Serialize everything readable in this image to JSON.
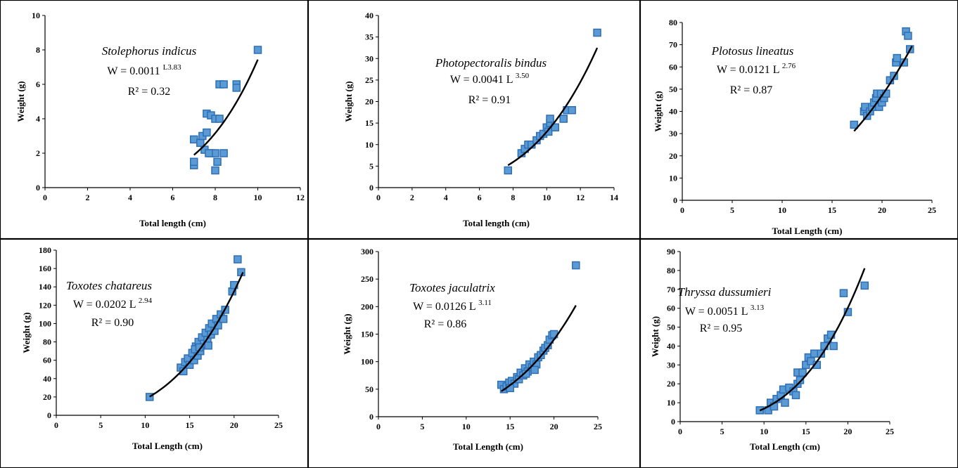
{
  "chart_data": [
    {
      "type": "scatter",
      "title": "",
      "xlabel": "Total length (cm)",
      "ylabel": "Weight (g)",
      "xlim": [
        0,
        12
      ],
      "xticks": [
        0,
        2,
        4,
        6,
        8,
        10,
        12
      ],
      "ylim": [
        0,
        10
      ],
      "yticks": [
        0,
        2,
        4,
        6,
        8,
        10
      ],
      "annotation": {
        "species": "Stolephorus indicus",
        "eq_left": "W = 0.0011",
        "eq_sup": "L3.83",
        "r2": "R² = 0.32"
      },
      "points": [
        [
          7.0,
          1.3
        ],
        [
          7.0,
          1.5
        ],
        [
          7.0,
          2.8
        ],
        [
          7.3,
          2.6
        ],
        [
          7.4,
          3.0
        ],
        [
          7.6,
          3.2
        ],
        [
          7.6,
          4.3
        ],
        [
          7.8,
          4.2
        ],
        [
          8.0,
          4.0
        ],
        [
          8.2,
          4.0
        ],
        [
          7.8,
          2.0
        ],
        [
          8.0,
          2.0
        ],
        [
          8.0,
          1.0
        ],
        [
          8.1,
          1.5
        ],
        [
          8.4,
          2.0
        ],
        [
          8.2,
          6.0
        ],
        [
          8.4,
          6.0
        ],
        [
          9.0,
          6.0
        ],
        [
          9.0,
          5.8
        ],
        [
          10.0,
          8.0
        ],
        [
          7.5,
          2.2
        ],
        [
          7.7,
          2.0
        ]
      ],
      "curve": {
        "a": 0.0011,
        "b": 3.83,
        "x_from": 7.0,
        "x_to": 10.0
      }
    },
    {
      "type": "scatter",
      "title": "",
      "xlabel": "Total length (cm)",
      "ylabel": "Weight (g)",
      "xlim": [
        0,
        14
      ],
      "xticks": [
        0,
        2,
        4,
        6,
        8,
        10,
        12,
        14
      ],
      "ylim": [
        0,
        40
      ],
      "yticks": [
        0,
        5,
        10,
        15,
        20,
        25,
        30,
        35,
        40
      ],
      "annotation": {
        "species": "Photopectoralis bindus",
        "eq_left": "W = 0.0041 L",
        "eq_sup": "3.50",
        "r2": "R² = 0.91"
      },
      "points": [
        [
          7.7,
          4.0
        ],
        [
          8.5,
          8.0
        ],
        [
          8.7,
          9.0
        ],
        [
          8.9,
          10.0
        ],
        [
          9.1,
          10.0
        ],
        [
          9.4,
          11.0
        ],
        [
          9.6,
          12.0
        ],
        [
          9.8,
          12.5
        ],
        [
          10.0,
          14.0
        ],
        [
          10.1,
          13.0
        ],
        [
          10.2,
          15.0
        ],
        [
          10.2,
          16.0
        ],
        [
          10.5,
          14.0
        ],
        [
          11.0,
          16.0
        ],
        [
          11.2,
          18.0
        ],
        [
          11.5,
          18.0
        ],
        [
          13.0,
          36.0
        ]
      ],
      "curve": {
        "a": 0.0041,
        "b": 3.5,
        "x_from": 7.7,
        "x_to": 13.0
      }
    },
    {
      "type": "scatter",
      "title": "",
      "xlabel": "Total Length (cm)",
      "ylabel": "Weight (g)",
      "xlim": [
        0,
        25
      ],
      "xticks": [
        0,
        5,
        10,
        15,
        20,
        25
      ],
      "ylim": [
        0,
        80
      ],
      "yticks": [
        0,
        10,
        20,
        30,
        40,
        50,
        60,
        70,
        80
      ],
      "annotation": {
        "species": "Plotosus lineatus",
        "eq_left": "W = 0.0121 L",
        "eq_sup": "2.76",
        "r2": "R² = 0.87"
      },
      "points": [
        [
          17.2,
          34.0
        ],
        [
          18.2,
          40.0
        ],
        [
          18.3,
          42.0
        ],
        [
          18.5,
          38.0
        ],
        [
          18.8,
          40.0
        ],
        [
          19.0,
          42.0
        ],
        [
          19.2,
          44.0
        ],
        [
          19.4,
          46.0
        ],
        [
          19.5,
          48.0
        ],
        [
          19.7,
          42.0
        ],
        [
          19.9,
          48.0
        ],
        [
          20.0,
          44.0
        ],
        [
          20.2,
          46.0
        ],
        [
          20.4,
          48.0
        ],
        [
          20.8,
          54.0
        ],
        [
          21.2,
          56.0
        ],
        [
          21.4,
          62.0
        ],
        [
          21.5,
          64.0
        ],
        [
          22.2,
          62.0
        ],
        [
          22.4,
          76.0
        ],
        [
          22.6,
          74.0
        ],
        [
          22.8,
          68.0
        ]
      ],
      "curve": {
        "a": 0.0121,
        "b": 2.76,
        "x_from": 17.2,
        "x_to": 23.0
      }
    },
    {
      "type": "scatter",
      "title": "",
      "xlabel": "Total Length (cm)",
      "ylabel": "Weight (g)",
      "xlim": [
        0,
        25
      ],
      "xticks": [
        0,
        5,
        10,
        15,
        20,
        25
      ],
      "ylim": [
        0,
        180
      ],
      "yticks": [
        0,
        20,
        40,
        60,
        80,
        100,
        120,
        140,
        160,
        180
      ],
      "annotation": {
        "species": "Toxotes chatareus",
        "eq_left": "W = 0.0202 L",
        "eq_sup": "2.94",
        "r2": "R² = 0.90"
      },
      "points": [
        [
          10.5,
          20
        ],
        [
          14.0,
          52
        ],
        [
          14.3,
          48
        ],
        [
          14.5,
          58
        ],
        [
          14.8,
          62
        ],
        [
          15.0,
          55
        ],
        [
          15.3,
          68
        ],
        [
          15.5,
          60
        ],
        [
          15.7,
          75
        ],
        [
          15.9,
          65
        ],
        [
          16.0,
          80
        ],
        [
          16.2,
          70
        ],
        [
          16.4,
          85
        ],
        [
          16.6,
          78
        ],
        [
          16.8,
          90
        ],
        [
          17.0,
          82
        ],
        [
          17.2,
          95
        ],
        [
          17.4,
          88
        ],
        [
          17.5,
          100
        ],
        [
          17.8,
          92
        ],
        [
          18.0,
          105
        ],
        [
          18.2,
          98
        ],
        [
          18.5,
          110
        ],
        [
          18.8,
          105
        ],
        [
          19.0,
          115
        ],
        [
          19.8,
          135
        ],
        [
          20.0,
          142
        ],
        [
          20.4,
          170
        ],
        [
          20.8,
          156
        ],
        [
          15.6,
          72
        ],
        [
          16.1,
          74
        ],
        [
          17.1,
          76
        ]
      ],
      "curve": {
        "a": 0.0202,
        "b": 2.94,
        "x_from": 10.5,
        "x_to": 21.0
      }
    },
    {
      "type": "scatter",
      "title": "",
      "xlabel": "Total Length (cm)",
      "ylabel": "Weight (g)",
      "xlim": [
        0,
        25
      ],
      "xticks": [
        0,
        5,
        10,
        15,
        20,
        25
      ],
      "ylim": [
        0,
        300
      ],
      "yticks": [
        0,
        50,
        100,
        150,
        200,
        250,
        300
      ],
      "annotation": {
        "species": "Toxotes jaculatrix",
        "eq_left": "W = 0.0126 L",
        "eq_sup": "3.11",
        "r2": "R² = 0.86"
      },
      "points": [
        [
          14.0,
          58
        ],
        [
          14.3,
          50
        ],
        [
          14.6,
          55
        ],
        [
          14.9,
          62
        ],
        [
          15.2,
          65
        ],
        [
          15.5,
          60
        ],
        [
          15.8,
          72
        ],
        [
          16.0,
          68
        ],
        [
          16.2,
          80
        ],
        [
          16.5,
          75
        ],
        [
          16.7,
          88
        ],
        [
          17.0,
          82
        ],
        [
          17.2,
          95
        ],
        [
          17.5,
          90
        ],
        [
          17.7,
          100
        ],
        [
          18.0,
          95
        ],
        [
          18.2,
          108
        ],
        [
          18.5,
          112
        ],
        [
          18.8,
          120
        ],
        [
          19.0,
          125
        ],
        [
          19.3,
          130
        ],
        [
          19.5,
          140
        ],
        [
          19.8,
          148
        ],
        [
          20.0,
          150
        ],
        [
          22.5,
          275
        ],
        [
          15.0,
          52
        ],
        [
          16.8,
          78
        ],
        [
          17.8,
          85
        ]
      ],
      "curve": {
        "a": 0.0126,
        "b": 3.11,
        "x_from": 14.0,
        "x_to": 22.5
      }
    },
    {
      "type": "scatter",
      "title": "",
      "xlabel": "Total Length (cm)",
      "ylabel": "Weight (g)",
      "xlim": [
        0,
        25
      ],
      "xticks": [
        0,
        5,
        10,
        15,
        20,
        25
      ],
      "ylim": [
        0,
        90
      ],
      "yticks": [
        0,
        10,
        20,
        30,
        40,
        50,
        60,
        70,
        80,
        90
      ],
      "annotation": {
        "species": "Thryssa dussumieri",
        "eq_left": "W = 0.0051 L",
        "eq_sup": "3.13",
        "r2": "R² = 0.95"
      },
      "points": [
        [
          9.5,
          6
        ],
        [
          10.5,
          6
        ],
        [
          10.8,
          10
        ],
        [
          11.2,
          8
        ],
        [
          11.5,
          12
        ],
        [
          12.0,
          14
        ],
        [
          12.3,
          17
        ],
        [
          12.5,
          10
        ],
        [
          13.0,
          18
        ],
        [
          13.5,
          16
        ],
        [
          13.8,
          14
        ],
        [
          14.0,
          20
        ],
        [
          14.0,
          26
        ],
        [
          14.3,
          22
        ],
        [
          14.6,
          26
        ],
        [
          15.0,
          30
        ],
        [
          15.3,
          34
        ],
        [
          15.6,
          32
        ],
        [
          16.0,
          36
        ],
        [
          16.3,
          30
        ],
        [
          16.8,
          36
        ],
        [
          17.2,
          40
        ],
        [
          17.6,
          44
        ],
        [
          18.0,
          46
        ],
        [
          18.3,
          40
        ],
        [
          19.5,
          68
        ],
        [
          20.0,
          58
        ],
        [
          22.0,
          72
        ]
      ],
      "curve": {
        "a": 0.0051,
        "b": 3.13,
        "x_from": 9.5,
        "x_to": 22.0
      }
    }
  ]
}
